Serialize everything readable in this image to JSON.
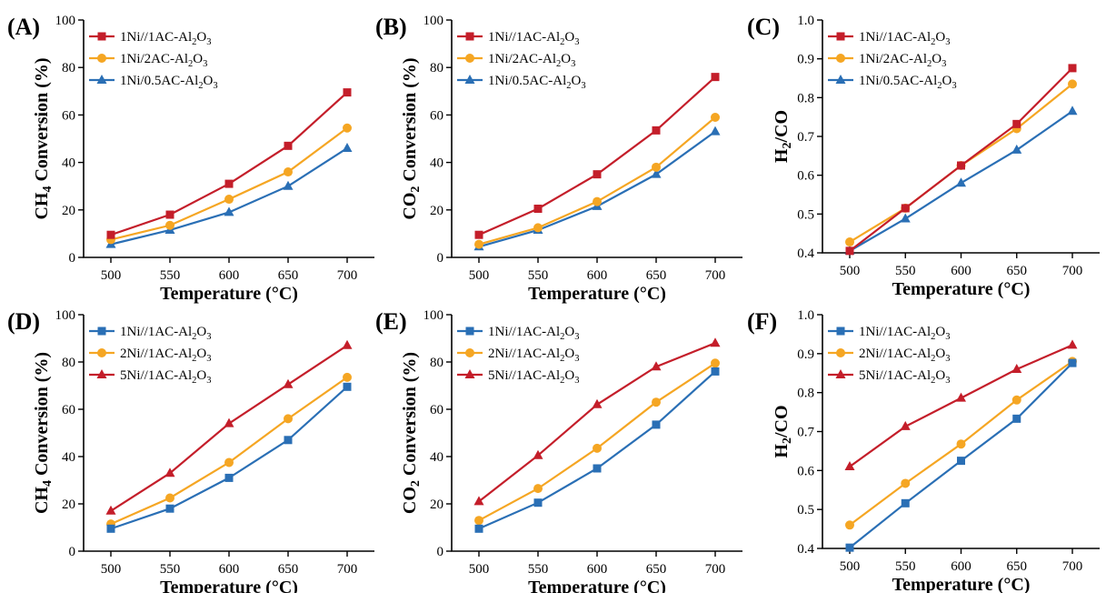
{
  "colors": {
    "red": "#c41e2a",
    "orange": "#f5a623",
    "blue": "#2a6fb5"
  },
  "chart_data": [
    {
      "panel_label": "(A)",
      "type": "line",
      "x": [
        500,
        550,
        600,
        650,
        700
      ],
      "xlabel": "Temperature (°C)",
      "ylabel": [
        "CH",
        "4",
        " Conversion (%)"
      ],
      "xlim": [
        500,
        700
      ],
      "ylim": [
        0,
        100
      ],
      "xticks": [
        "500",
        "550",
        "600",
        "650",
        "700"
      ],
      "yticks": [
        "0",
        "20",
        "40",
        "60",
        "80",
        "100"
      ],
      "legend_position": "top-left",
      "series": [
        {
          "name": [
            "1Ni//1AC-Al",
            "2",
            "O",
            "3",
            ""
          ],
          "color": "red",
          "marker": "square",
          "values": [
            9.5,
            18,
            31,
            47,
            69.5
          ]
        },
        {
          "name": [
            "1Ni/2AC-Al",
            "2",
            "O",
            "3",
            ""
          ],
          "color": "orange",
          "marker": "circle",
          "values": [
            7.5,
            13.5,
            24.5,
            36,
            54.5
          ]
        },
        {
          "name": [
            "1Ni/0.5AC-Al",
            "2",
            "O",
            "3",
            ""
          ],
          "color": "blue",
          "marker": "triangle",
          "values": [
            5.5,
            11.5,
            19,
            30,
            46
          ]
        }
      ]
    },
    {
      "panel_label": "(B)",
      "type": "line",
      "x": [
        500,
        550,
        600,
        650,
        700
      ],
      "xlabel": "Temperature (°C)",
      "ylabel": [
        "CO",
        "2",
        " Conversion (%)"
      ],
      "xlim": [
        500,
        700
      ],
      "ylim": [
        0,
        100
      ],
      "xticks": [
        "500",
        "550",
        "600",
        "650",
        "700"
      ],
      "yticks": [
        "0",
        "20",
        "40",
        "60",
        "80",
        "100"
      ],
      "legend_position": "top-left",
      "series": [
        {
          "name": [
            "1Ni//1AC-Al",
            "2",
            "O",
            "3",
            ""
          ],
          "color": "red",
          "marker": "square",
          "values": [
            9.5,
            20.5,
            35,
            53.5,
            76
          ]
        },
        {
          "name": [
            "1Ni/2AC-Al",
            "2",
            "O",
            "3",
            ""
          ],
          "color": "orange",
          "marker": "circle",
          "values": [
            5.5,
            12.5,
            23.5,
            38,
            59
          ]
        },
        {
          "name": [
            "1Ni/0.5AC-Al",
            "2",
            "O",
            "3",
            ""
          ],
          "color": "blue",
          "marker": "triangle",
          "values": [
            4.5,
            11.5,
            21.5,
            35,
            53
          ]
        }
      ]
    },
    {
      "panel_label": "(C)",
      "type": "line",
      "x": [
        500,
        550,
        600,
        650,
        700
      ],
      "xlabel": "Temperature (°C)",
      "ylabel": [
        "H",
        "2",
        "/CO"
      ],
      "xlim": [
        500,
        700
      ],
      "ylim": [
        0.4,
        1.0
      ],
      "xticks": [
        "500",
        "550",
        "600",
        "650",
        "700"
      ],
      "yticks": [
        "0.4",
        "0.5",
        "0.6",
        "0.7",
        "0.8",
        "0.9",
        "1.0"
      ],
      "legend_position": "top-left",
      "series": [
        {
          "name": [
            "1Ni//1AC-Al",
            "2",
            "O",
            "3",
            ""
          ],
          "color": "red",
          "marker": "square",
          "values": [
            0.405,
            0.515,
            0.625,
            0.732,
            0.876
          ]
        },
        {
          "name": [
            "1Ni/2AC-Al",
            "2",
            "O",
            "3",
            ""
          ],
          "color": "orange",
          "marker": "circle",
          "values": [
            0.428,
            0.515,
            0.625,
            0.72,
            0.835
          ]
        },
        {
          "name": [
            "1Ni/0.5AC-Al",
            "2",
            "O",
            "3",
            ""
          ],
          "color": "blue",
          "marker": "triangle",
          "values": [
            0.405,
            0.488,
            0.58,
            0.665,
            0.765
          ]
        }
      ]
    },
    {
      "panel_label": "(D)",
      "type": "line",
      "x": [
        500,
        550,
        600,
        650,
        700
      ],
      "xlabel": "Temperature (°C)",
      "ylabel": [
        "CH",
        "4",
        " Conversion (%)"
      ],
      "xlim": [
        500,
        700
      ],
      "ylim": [
        0,
        100
      ],
      "xticks": [
        "500",
        "550",
        "600",
        "650",
        "700"
      ],
      "yticks": [
        "0",
        "20",
        "40",
        "60",
        "80",
        "100"
      ],
      "legend_position": "top-left",
      "series": [
        {
          "name": [
            "1Ni//1AC-Al",
            "2",
            "O",
            "3",
            ""
          ],
          "color": "blue",
          "marker": "square",
          "values": [
            9.5,
            18,
            31,
            47,
            69.5
          ]
        },
        {
          "name": [
            "2Ni//1AC-Al",
            "2",
            "O",
            "3",
            ""
          ],
          "color": "orange",
          "marker": "circle",
          "values": [
            11.5,
            22.5,
            37.5,
            56,
            73.5
          ]
        },
        {
          "name": [
            "5Ni//1AC-Al",
            "2",
            "O",
            "3",
            ""
          ],
          "color": "red",
          "marker": "triangle",
          "values": [
            17,
            33,
            54,
            70.5,
            87
          ]
        }
      ]
    },
    {
      "panel_label": "(E)",
      "type": "line",
      "x": [
        500,
        550,
        600,
        650,
        700
      ],
      "xlabel": "Temperature (°C)",
      "ylabel": [
        "CO",
        "2",
        " Conversion (%)"
      ],
      "xlim": [
        500,
        700
      ],
      "ylim": [
        0,
        100
      ],
      "xticks": [
        "500",
        "550",
        "600",
        "650",
        "700"
      ],
      "yticks": [
        "0",
        "20",
        "40",
        "60",
        "80",
        "100"
      ],
      "legend_position": "top-left",
      "series": [
        {
          "name": [
            "1Ni//1AC-Al",
            "2",
            "O",
            "3",
            ""
          ],
          "color": "blue",
          "marker": "square",
          "values": [
            9.5,
            20.5,
            35,
            53.5,
            76
          ]
        },
        {
          "name": [
            "2Ni//1AC-Al",
            "2",
            "O",
            "3",
            ""
          ],
          "color": "orange",
          "marker": "circle",
          "values": [
            13,
            26.5,
            43.5,
            63,
            79.5
          ]
        },
        {
          "name": [
            "5Ni//1AC-Al",
            "2",
            "O",
            "3",
            ""
          ],
          "color": "red",
          "marker": "triangle",
          "values": [
            21,
            40.5,
            62,
            78,
            88
          ]
        }
      ]
    },
    {
      "panel_label": "(F)",
      "type": "line",
      "x": [
        500,
        550,
        600,
        650,
        700
      ],
      "xlabel": "Temperature (°C)",
      "ylabel": [
        "H",
        "2",
        "/CO"
      ],
      "xlim": [
        500,
        700
      ],
      "ylim": [
        0.4,
        1.0
      ],
      "xticks": [
        "500",
        "550",
        "600",
        "650",
        "700"
      ],
      "yticks": [
        "0.4",
        "0.5",
        "0.6",
        "0.7",
        "0.8",
        "0.9",
        "1.0"
      ],
      "legend_position": "top-left",
      "series": [
        {
          "name": [
            "1Ni//1AC-Al",
            "2",
            "O",
            "3",
            ""
          ],
          "color": "blue",
          "marker": "square",
          "values": [
            0.402,
            0.516,
            0.625,
            0.733,
            0.876
          ]
        },
        {
          "name": [
            "2Ni//1AC-Al",
            "2",
            "O",
            "3",
            ""
          ],
          "color": "orange",
          "marker": "circle",
          "values": [
            0.46,
            0.567,
            0.668,
            0.781,
            0.88
          ]
        },
        {
          "name": [
            "5Ni//1AC-Al",
            "2",
            "O",
            "3",
            ""
          ],
          "color": "red",
          "marker": "triangle",
          "values": [
            0.61,
            0.713,
            0.786,
            0.86,
            0.922
          ]
        }
      ]
    }
  ]
}
